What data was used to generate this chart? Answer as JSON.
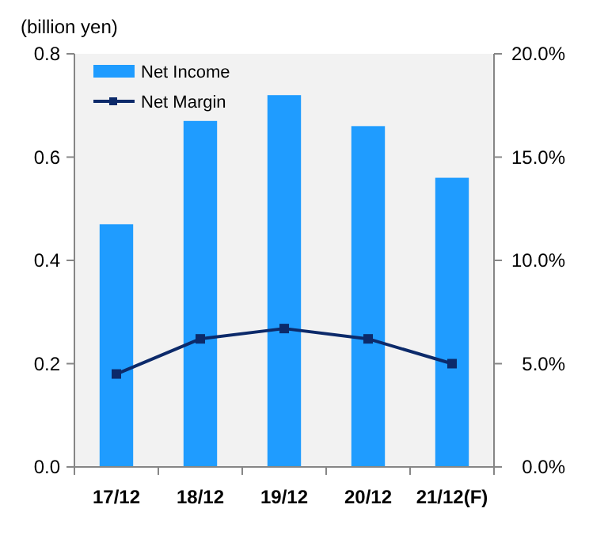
{
  "chart_data": {
    "type": "bar",
    "ylabel": "(billion yen)",
    "categories": [
      "17/12",
      "18/12",
      "19/12",
      "20/12",
      "21/12(F)"
    ],
    "series": [
      {
        "name": "Net Income",
        "color": "#1f9cff",
        "values": [
          0.47,
          0.67,
          0.72,
          0.66,
          0.56
        ]
      },
      {
        "name": "Net Margin",
        "type": "line",
        "axis": "y2",
        "color": "#0c2a6a",
        "values": [
          4.5,
          6.2,
          6.7,
          6.2,
          5.0
        ]
      }
    ],
    "ylim": [
      0,
      0.8
    ],
    "yticks": [
      {
        "value": 0,
        "label": "0.0"
      },
      {
        "value": 0.2,
        "label": "0.2"
      },
      {
        "value": 0.4,
        "label": "0.4"
      },
      {
        "value": 0.6,
        "label": "0.6"
      },
      {
        "value": 0.8,
        "label": "0.8"
      }
    ],
    "y2lim": [
      0,
      20
    ],
    "y2ticks": [
      {
        "value": 0,
        "label": "0.0%"
      },
      {
        "value": 5,
        "label": "5.0%"
      },
      {
        "value": 10,
        "label": "10.0%"
      },
      {
        "value": 15,
        "label": "15.0%"
      },
      {
        "value": 20,
        "label": "20.0%"
      }
    ],
    "grid": false,
    "legend": "top left",
    "marker": "square",
    "line_style": "solid"
  }
}
